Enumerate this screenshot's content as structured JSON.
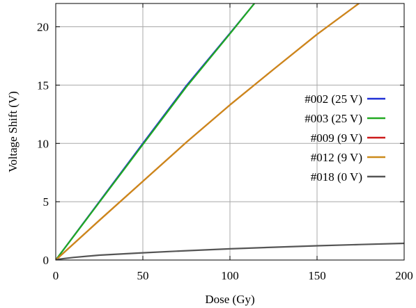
{
  "chart_data": {
    "type": "line",
    "title": "",
    "xlabel": "Dose (Gy)",
    "ylabel": "Voltage Shift (V)",
    "xlim": [
      0,
      200
    ],
    "ylim": [
      0,
      22
    ],
    "xticks": [
      0,
      50,
      100,
      150,
      200
    ],
    "yticks": [
      0,
      5,
      10,
      15,
      20
    ],
    "grid": true,
    "legend_position": "right",
    "series": [
      {
        "name": "#002 (25 V)",
        "color": "#1f2fd6",
        "x": [
          0,
          25,
          50,
          75,
          100,
          114
        ],
        "y": [
          0,
          5.0,
          10.0,
          14.95,
          19.45,
          22
        ]
      },
      {
        "name": "#003 (25 V)",
        "color": "#22aa22",
        "x": [
          0,
          25,
          50,
          75,
          100,
          114
        ],
        "y": [
          0,
          4.95,
          9.9,
          14.85,
          19.4,
          22
        ]
      },
      {
        "name": "#009 (9 V)",
        "color": "#cc1a1a",
        "x": [
          0,
          25,
          50,
          75,
          100,
          125,
          150,
          174
        ],
        "y": [
          0,
          3.4,
          6.75,
          10.1,
          13.3,
          16.35,
          19.35,
          22
        ]
      },
      {
        "name": "#012 (9 V)",
        "color": "#cc8a1a",
        "x": [
          0,
          25,
          50,
          75,
          100,
          125,
          150,
          174
        ],
        "y": [
          0,
          3.4,
          6.75,
          10.1,
          13.3,
          16.35,
          19.35,
          22
        ]
      },
      {
        "name": "#018 (0 V)",
        "color": "#555555",
        "x": [
          0,
          2,
          10,
          25,
          50,
          75,
          100,
          125,
          150,
          175,
          200
        ],
        "y": [
          0,
          0.08,
          0.22,
          0.42,
          0.62,
          0.8,
          0.96,
          1.1,
          1.22,
          1.33,
          1.43
        ]
      }
    ]
  }
}
